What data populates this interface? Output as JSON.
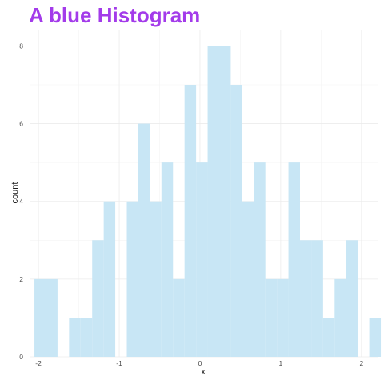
{
  "title": "A blue Histogram",
  "colors": {
    "title": "#a33bea",
    "bar_fill": "#c8e6f5",
    "grid_major": "#ebebeb",
    "grid_minor": "#f4f4f4"
  },
  "chart_data": {
    "type": "bar",
    "title": "A blue Histogram",
    "xlabel": "x",
    "ylabel": "count",
    "xlim": [
      -2.1,
      2.2
    ],
    "ylim": [
      0,
      8.4
    ],
    "xticks": [
      -2,
      -1,
      0,
      1,
      2
    ],
    "xtick_labels": [
      "-2",
      "-1",
      "0",
      "1",
      "2"
    ],
    "yticks": [
      0,
      2,
      4,
      6,
      8
    ],
    "ytick_labels": [
      "0",
      "2",
      "4",
      "6",
      "8"
    ],
    "grid": true,
    "legend": "none",
    "bin_width": 0.143,
    "bins": [
      {
        "x0": -2.05,
        "count": 2
      },
      {
        "x0": -1.907,
        "count": 2
      },
      {
        "x0": -1.764,
        "count": 0
      },
      {
        "x0": -1.621,
        "count": 1
      },
      {
        "x0": -1.478,
        "count": 1
      },
      {
        "x0": -1.335,
        "count": 3
      },
      {
        "x0": -1.192,
        "count": 4
      },
      {
        "x0": -1.049,
        "count": 0
      },
      {
        "x0": -0.906,
        "count": 4
      },
      {
        "x0": -0.763,
        "count": 6
      },
      {
        "x0": -0.62,
        "count": 4
      },
      {
        "x0": -0.477,
        "count": 5
      },
      {
        "x0": -0.334,
        "count": 2
      },
      {
        "x0": -0.191,
        "count": 7
      },
      {
        "x0": -0.048,
        "count": 5
      },
      {
        "x0": 0.095,
        "count": 8
      },
      {
        "x0": 0.238,
        "count": 8
      },
      {
        "x0": 0.381,
        "count": 7
      },
      {
        "x0": 0.524,
        "count": 4
      },
      {
        "x0": 0.667,
        "count": 5
      },
      {
        "x0": 0.81,
        "count": 2
      },
      {
        "x0": 0.953,
        "count": 2
      },
      {
        "x0": 1.096,
        "count": 5
      },
      {
        "x0": 1.239,
        "count": 3
      },
      {
        "x0": 1.382,
        "count": 3
      },
      {
        "x0": 1.525,
        "count": 1
      },
      {
        "x0": 1.668,
        "count": 2
      },
      {
        "x0": 1.811,
        "count": 3
      },
      {
        "x0": 1.954,
        "count": 0
      },
      {
        "x0": 2.097,
        "count": 1
      }
    ]
  }
}
